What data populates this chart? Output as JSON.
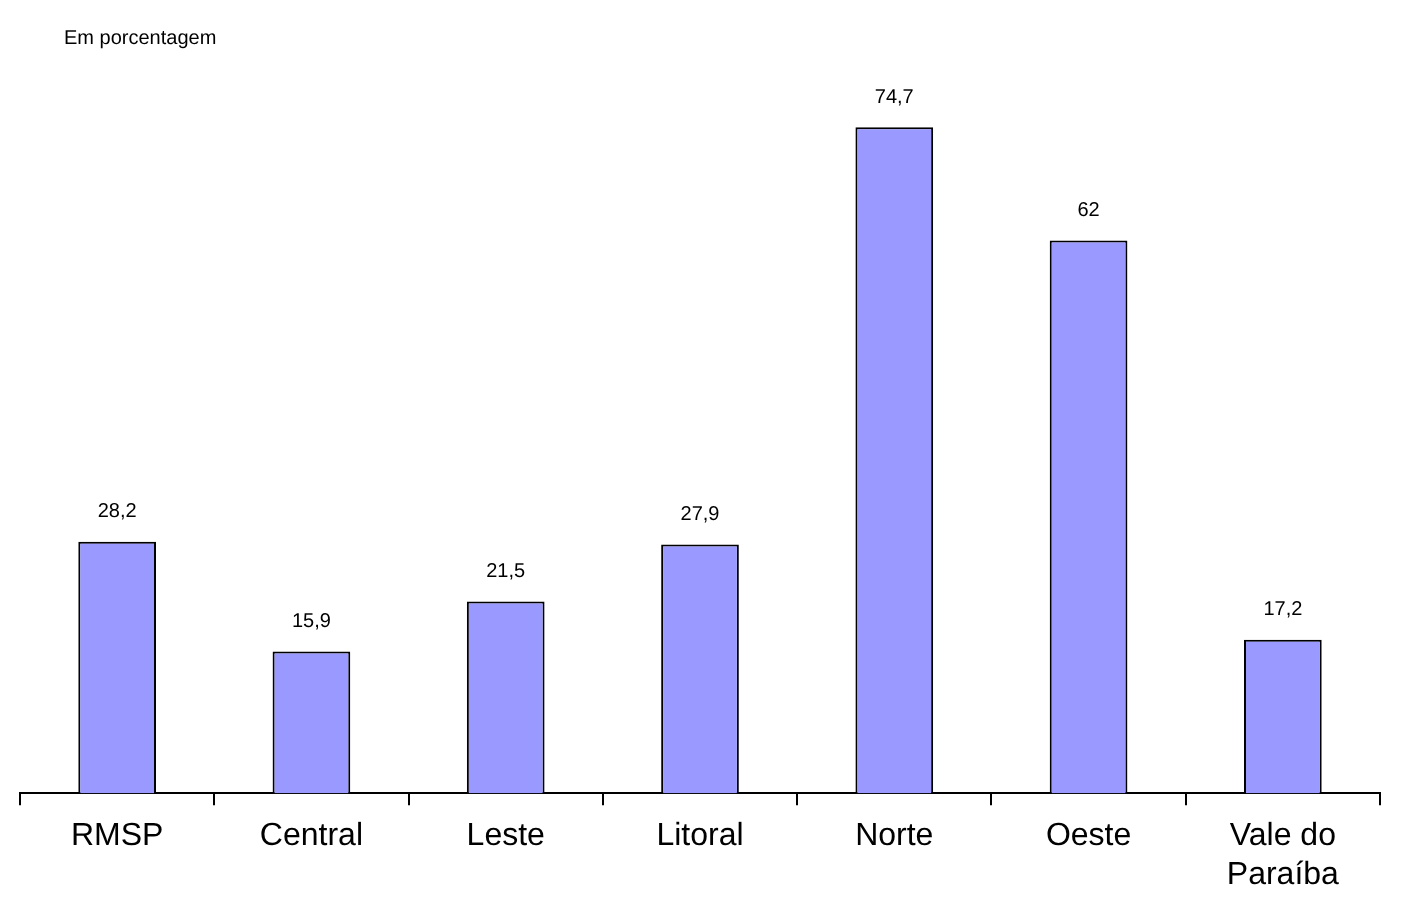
{
  "chart_data": {
    "type": "bar",
    "ylabel": "Em porcentagem",
    "categories": [
      "RMSP",
      "Central",
      "Leste",
      "Litoral",
      "Norte",
      "Oeste",
      "Vale do Paraíba"
    ],
    "values": [
      28.2,
      15.9,
      21.5,
      27.9,
      74.7,
      62,
      17.2
    ],
    "value_labels": [
      "28,2",
      "15,9",
      "21,5",
      "27,9",
      "74,7",
      "62",
      "17,2"
    ],
    "color": "#9999ff",
    "grid": false,
    "legend": false
  }
}
